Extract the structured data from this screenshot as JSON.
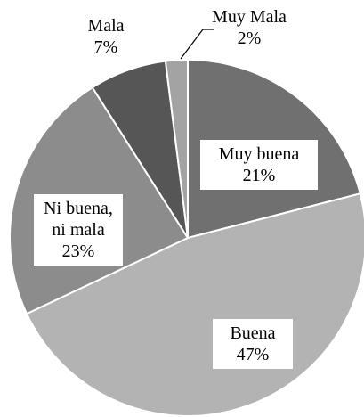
{
  "chart_data": {
    "type": "pie",
    "categories": [
      "Muy buena",
      "Buena",
      "Ni buena, ni mala",
      "Mala",
      "Muy Mala"
    ],
    "values": [
      21,
      47,
      23,
      7,
      2
    ],
    "value_labels": [
      "21%",
      "47%",
      "23%",
      "7%",
      "2%"
    ],
    "colors": [
      "#707070",
      "#b3b3b3",
      "#8c8c8c",
      "#565656",
      "#a3a3a3"
    ]
  }
}
